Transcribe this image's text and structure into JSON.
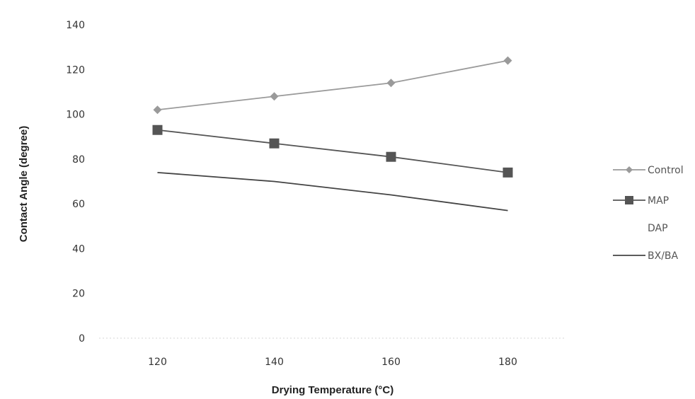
{
  "chart_data": {
    "type": "line",
    "xlabel": "Drying Temperature (°C)",
    "ylabel": "Contact Angle (degree)",
    "x": [
      120,
      140,
      160,
      180
    ],
    "xlim": [
      110,
      190
    ],
    "ylim": [
      0,
      140
    ],
    "yticks": [
      0,
      20,
      40,
      60,
      80,
      100,
      120,
      140
    ],
    "grid": false,
    "legend_position": "right",
    "series": [
      {
        "name": "Control",
        "values": [
          102,
          108,
          114,
          124
        ],
        "color": "#9a9a9a",
        "marker": "diamond"
      },
      {
        "name": "MAP",
        "values": [
          93,
          87,
          81,
          74
        ],
        "color": "#555555",
        "marker": "square"
      },
      {
        "name": "DAP",
        "values": [
          null,
          null,
          null,
          null
        ],
        "color": "#ffffff",
        "marker": "none"
      },
      {
        "name": "BX/BA",
        "values": [
          74,
          70,
          64,
          57
        ],
        "color": "#444444",
        "marker": "none"
      }
    ]
  }
}
